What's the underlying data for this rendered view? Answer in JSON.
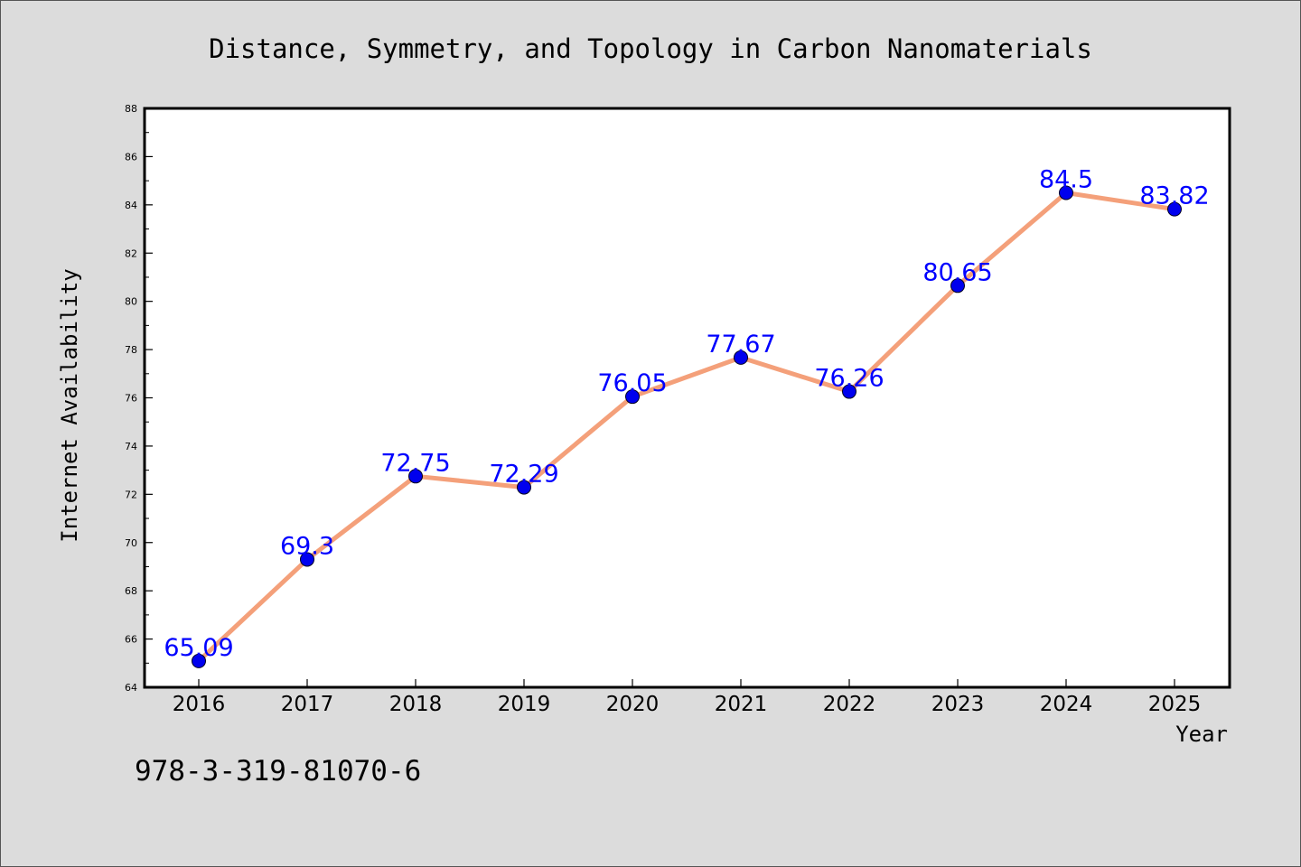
{
  "chart_data": {
    "type": "line",
    "title": "Distance, Symmetry, and Topology in Carbon Nanomaterials",
    "xlabel": "Year",
    "ylabel": "Internet Availability",
    "categories": [
      "2016",
      "2017",
      "2018",
      "2019",
      "2020",
      "2021",
      "2022",
      "2023",
      "2024",
      "2025"
    ],
    "series": [
      {
        "values": [
          65.09,
          69.3,
          72.75,
          72.29,
          76.05,
          77.67,
          76.26,
          80.65,
          84.5,
          83.82
        ],
        "data_labels": [
          "65.09",
          "69.3",
          "72.75",
          "72.29",
          "76.05",
          "77.67",
          "76.26",
          "80.65",
          "84.5",
          "83.82"
        ]
      }
    ],
    "ylim": [
      64,
      88
    ],
    "y_ticks": [
      "64",
      "66",
      "68",
      "70",
      "72",
      "74",
      "76",
      "78",
      "80",
      "82",
      "84",
      "86",
      "88"
    ],
    "grid": false,
    "legend": "none",
    "colors": {
      "line": "#f4a07a",
      "marker": "#0000ee",
      "label": "#0000ff",
      "background": "#dcdcdc",
      "plot_background": "#ffffff"
    }
  },
  "footer_text": "978-3-319-81070-6"
}
